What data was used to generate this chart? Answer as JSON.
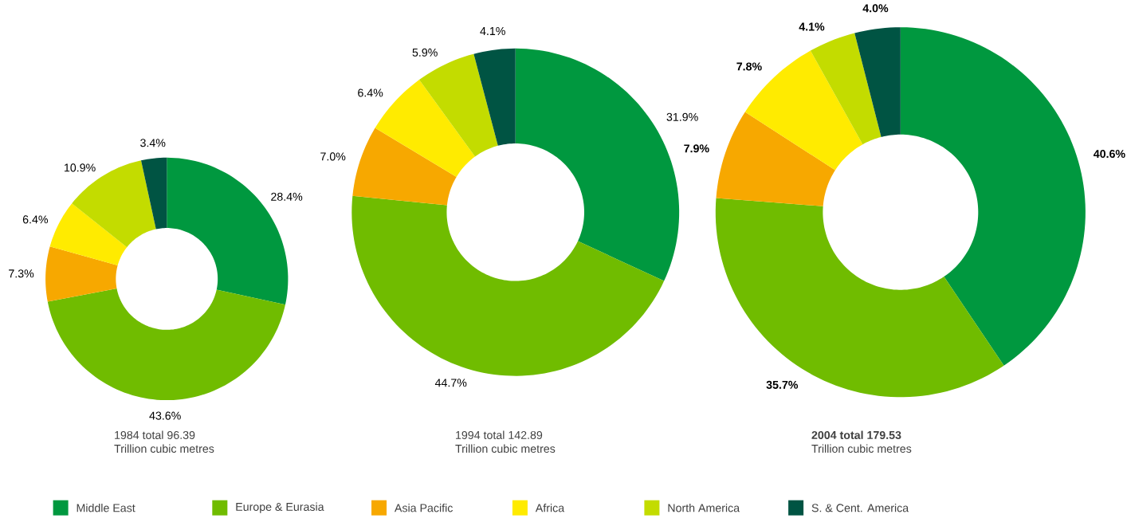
{
  "chart_data": [
    {
      "type": "donut",
      "title": "1984 total 96.39",
      "subtitle": "Trillion cubic metres",
      "categories": [
        "Middle East",
        "Europe & Eurasia",
        "Asia Pacific",
        "Africa",
        "North America",
        "S. & Cent. America"
      ],
      "values": [
        28.4,
        43.6,
        7.3,
        6.4,
        10.9,
        3.4
      ],
      "colors": [
        "#00983f",
        "#70bc00",
        "#f7a800",
        "#ffeb00",
        "#c3dc00",
        "#005443"
      ],
      "value_labels": [
        "28.4%",
        "43.6%",
        "7.3%",
        "6.4%",
        "10.9%",
        "3.4%"
      ],
      "legend": "bottom"
    },
    {
      "type": "donut",
      "title": "1994 total 142.89",
      "subtitle": "Trillion cubic metres",
      "values": [
        31.9,
        44.7,
        7.0,
        6.4,
        5.9,
        4.1
      ],
      "colors": [
        "#00983f",
        "#70bc00",
        "#f7a800",
        "#ffeb00",
        "#c3dc00",
        "#005443"
      ],
      "value_labels": [
        "31.9%",
        "44.7%",
        "7.0%",
        "6.4%",
        "5.9%",
        "4.1%"
      ]
    },
    {
      "type": "donut",
      "title": "**2004 total 179.53**",
      "subtitle": "Trillion cubic metres",
      "values": [
        40.6,
        35.7,
        7.9,
        7.8,
        4.1,
        4.0
      ],
      "colors": [
        "#00983f",
        "#70bc00",
        "#f7a800",
        "#ffeb00",
        "#c3dc00",
        "#005443"
      ],
      "value_labels": [
        "**40.6%**",
        "**35.7%**",
        "**7.9%**",
        "**7.8%**",
        "**4.1%**",
        "**4.0%**"
      ]
    }
  ]
}
